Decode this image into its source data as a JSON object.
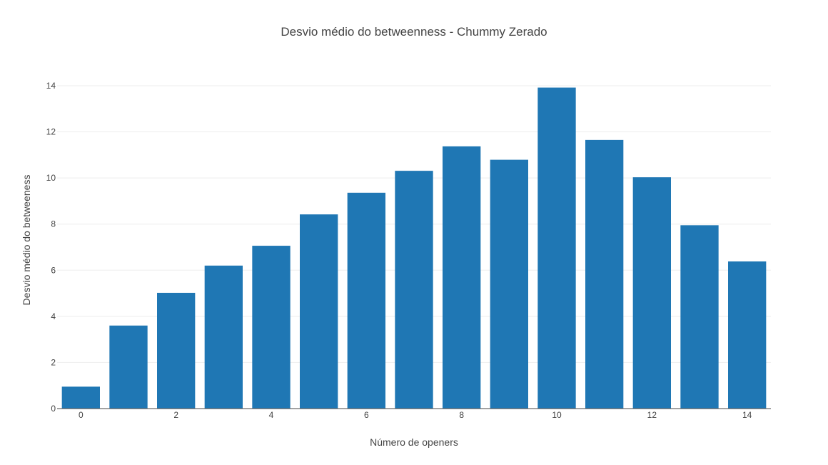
{
  "chart_data": {
    "type": "bar",
    "title": "Desvio médio do betweenness - Chummy Zerado",
    "xlabel": "Número de openers",
    "ylabel": "Desvio médio do betweeness",
    "x": [
      0,
      1,
      2,
      3,
      4,
      5,
      6,
      7,
      8,
      9,
      10,
      11,
      12,
      13,
      14
    ],
    "values": [
      0.95,
      3.6,
      5.02,
      6.2,
      7.06,
      8.42,
      9.36,
      10.31,
      11.37,
      10.79,
      13.92,
      11.65,
      10.03,
      7.95,
      6.38
    ],
    "xticks": [
      "0",
      "2",
      "4",
      "6",
      "8",
      "10",
      "12",
      "14"
    ],
    "yticks": [
      "0",
      "2",
      "4",
      "6",
      "8",
      "10",
      "12",
      "14"
    ],
    "xlim": [
      -0.5,
      14.5
    ],
    "ylim": [
      0,
      14.65
    ],
    "grid": true,
    "bar_color": "#1f77b4"
  }
}
